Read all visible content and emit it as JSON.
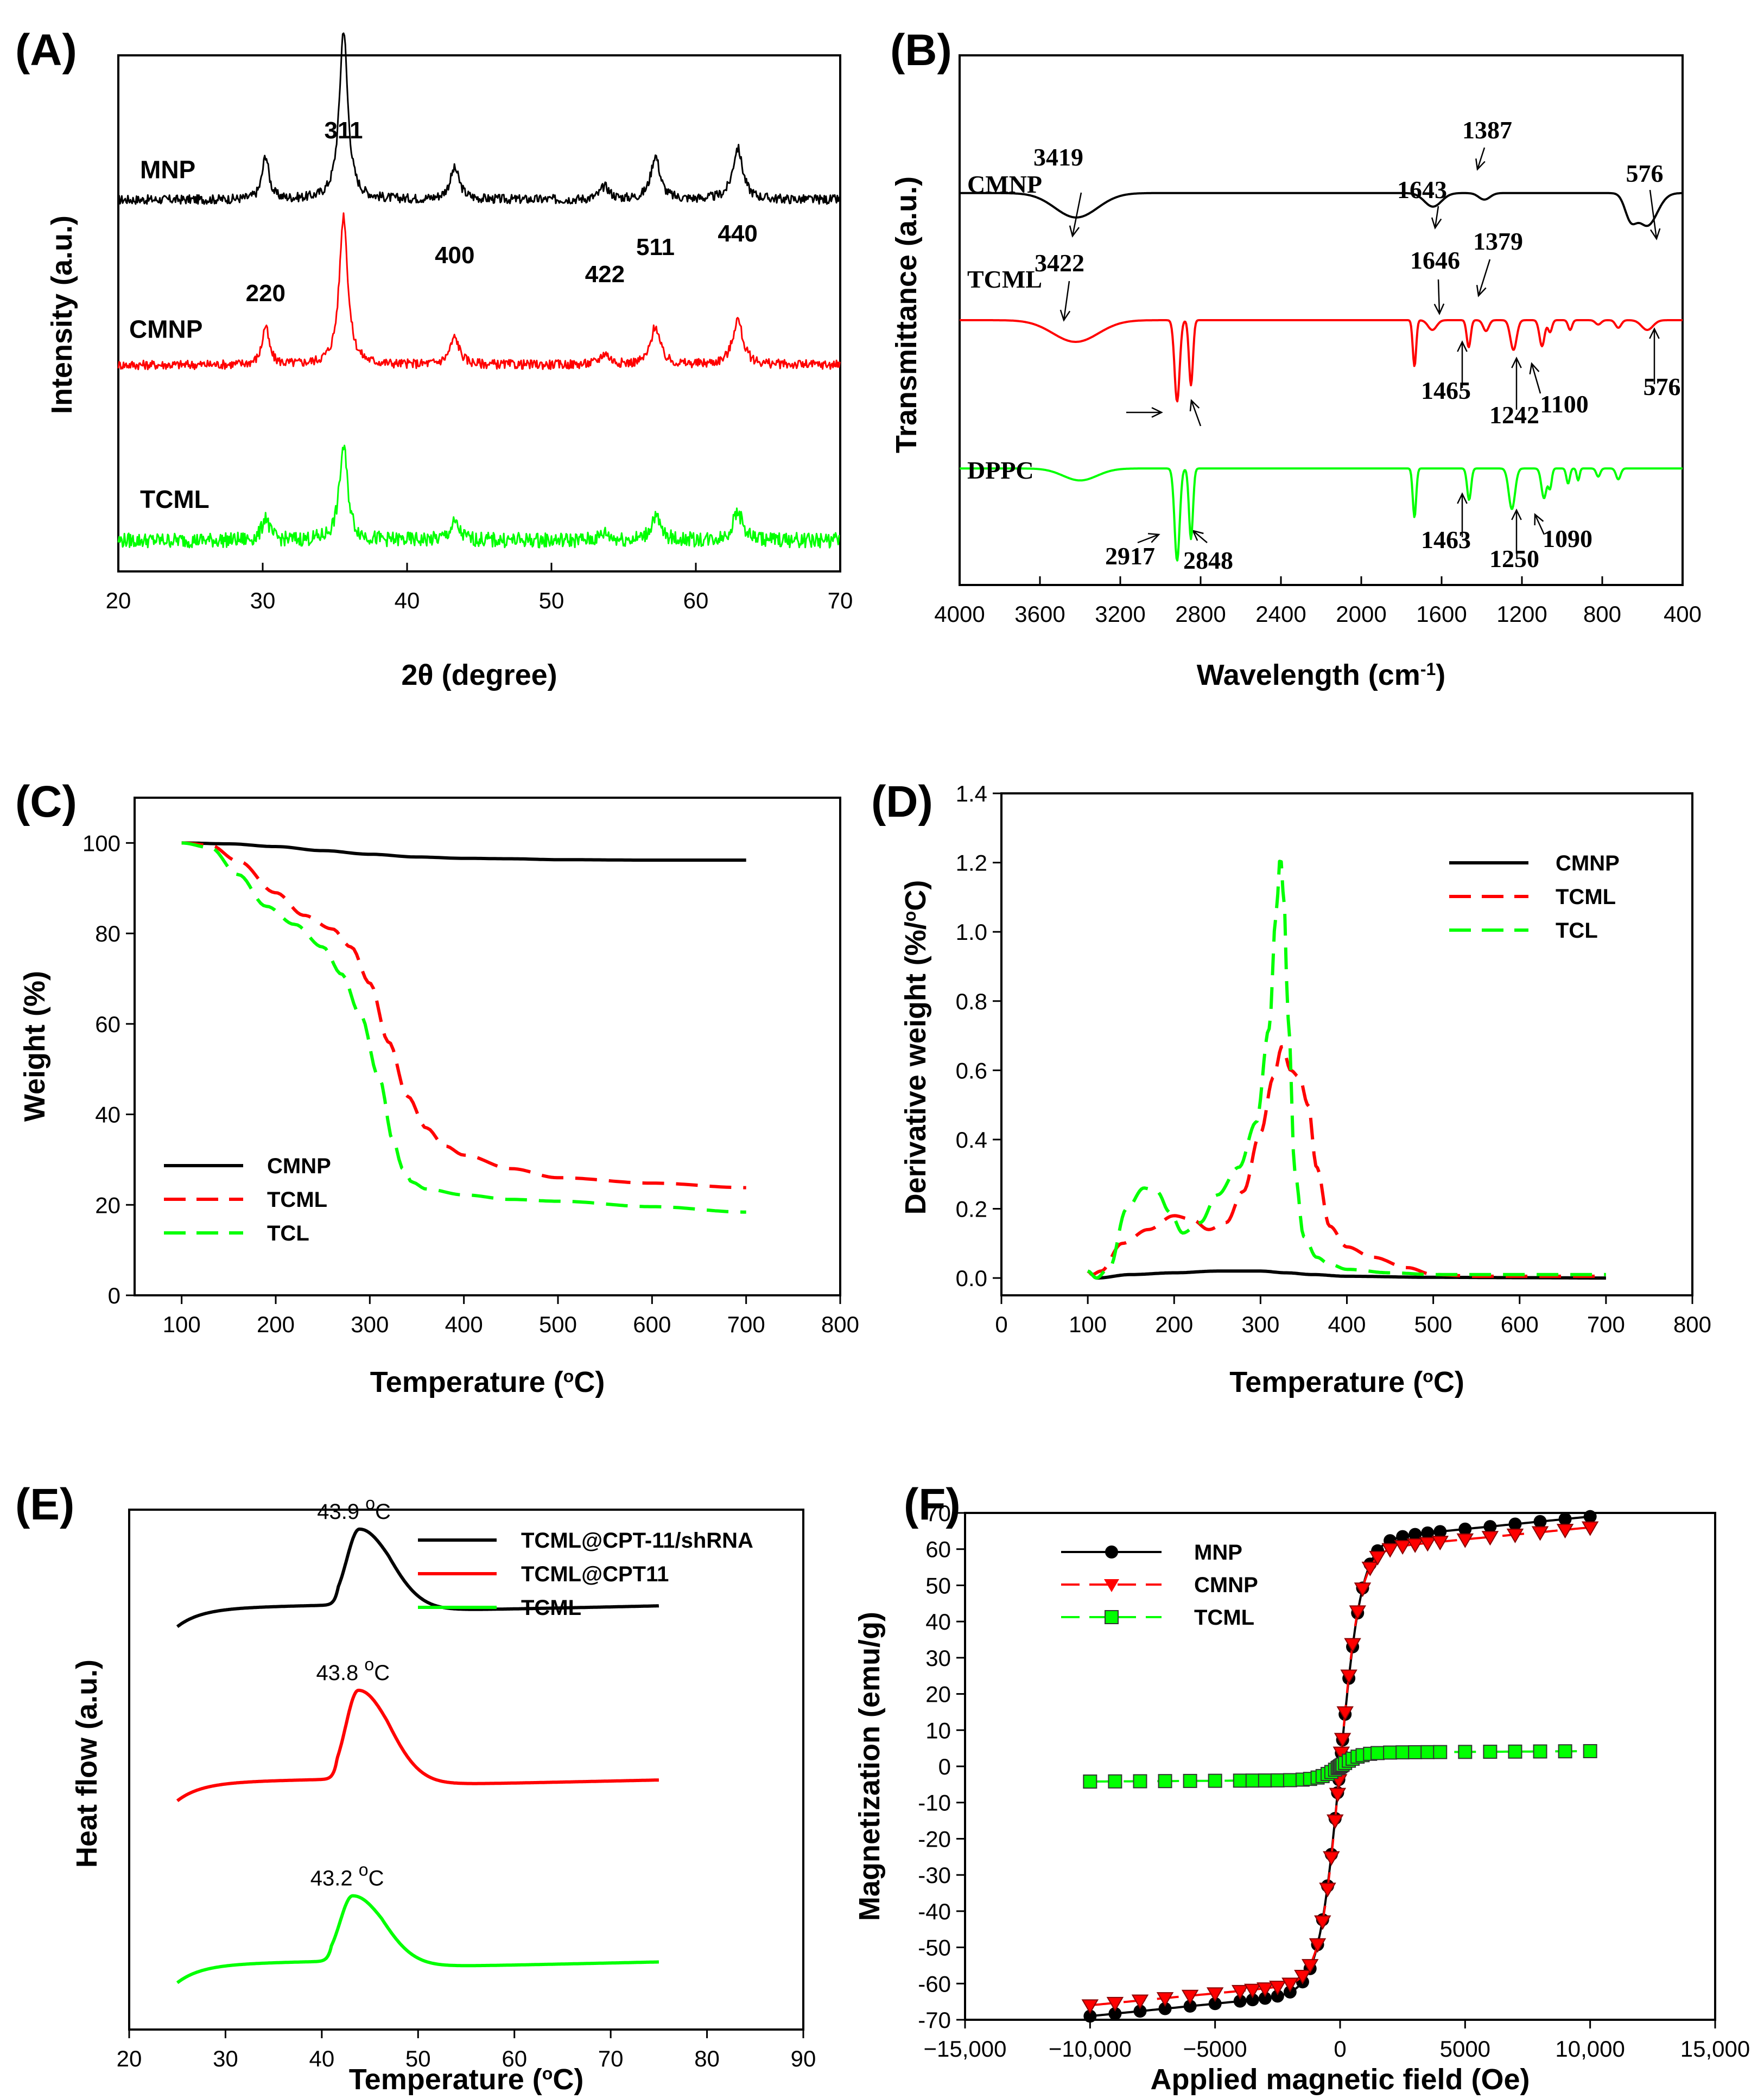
{
  "chart_data": [
    {
      "panel": "(A)",
      "type": "line",
      "xlabel": "2θ (degree)",
      "ylabel": "Intensity (a.u.)",
      "xlim": [
        20,
        70
      ],
      "xticks": [
        20,
        30,
        40,
        50,
        60,
        70
      ],
      "peaks": [
        {
          "label": "220",
          "x": 30.2
        },
        {
          "label": "311",
          "x": 35.6
        },
        {
          "label": "400",
          "x": 43.3
        },
        {
          "label": "422",
          "x": 53.7
        },
        {
          "label": "511",
          "x": 57.2
        },
        {
          "label": "440",
          "x": 62.9
        }
      ],
      "series": [
        {
          "name": "MNP",
          "color": "#000000",
          "baseline": 0.72,
          "scale": 1.0
        },
        {
          "name": "CMNP",
          "color": "#ff0000",
          "baseline": 0.4,
          "scale": 0.88
        },
        {
          "name": "TCML",
          "color": "#00ff00",
          "baseline": 0.06,
          "scale": 0.55
        }
      ]
    },
    {
      "panel": "(B)",
      "type": "line",
      "xlabel": "Wavelength (cm",
      "xlabel_sup": "-1",
      "xlabel_end": ")",
      "ylabel": "Transmittance (a.u.)",
      "xlim": [
        4000,
        400
      ],
      "xticks": [
        4000,
        3600,
        3200,
        2800,
        2400,
        2000,
        1600,
        1200,
        800,
        400
      ],
      "series": [
        {
          "name": "CMNP",
          "color": "#000000",
          "bands": [
            3419,
            1643,
            1387,
            576
          ]
        },
        {
          "name": "TCML",
          "color": "#ff0000",
          "bands": [
            3422,
            2917,
            2848,
            1646,
            1465,
            1379,
            1242,
            1100,
            576
          ]
        },
        {
          "name": "DPPC",
          "color": "#00ff00",
          "bands": [
            2917,
            2848,
            1463,
            1250,
            1090
          ]
        }
      ],
      "annotations": [
        "3419",
        "1643",
        "1387",
        "576",
        "3422",
        "1646",
        "1379",
        "1465",
        "1242",
        "1100",
        "576",
        "2917",
        "2848",
        "1463",
        "1250",
        "1090"
      ]
    },
    {
      "panel": "(C)",
      "type": "line",
      "xlabel": "Temperature (",
      "xlabel_sup": "o",
      "xlabel_end": "C)",
      "ylabel": "Weight (%)",
      "xlim": [
        50,
        800
      ],
      "ylim": [
        0,
        110
      ],
      "xticks": [
        100,
        200,
        300,
        400,
        500,
        600,
        700,
        800
      ],
      "yticks": [
        0,
        20,
        40,
        60,
        80,
        100
      ],
      "series": [
        {
          "name": "CMNP",
          "color": "#000000",
          "dash": "solid",
          "x": [
            100,
            150,
            200,
            250,
            300,
            350,
            400,
            450,
            500,
            600,
            700
          ],
          "y": [
            100,
            99.8,
            99.2,
            98.3,
            97.5,
            96.9,
            96.6,
            96.5,
            96.3,
            96.2,
            96.2
          ]
        },
        {
          "name": "TCML",
          "color": "#ff0000",
          "dash": "dashed",
          "x": [
            100,
            130,
            160,
            200,
            230,
            260,
            280,
            300,
            320,
            340,
            360,
            380,
            400,
            450,
            500,
            600,
            700
          ],
          "y": [
            100,
            99.5,
            96,
            89,
            84,
            81,
            77,
            69,
            56,
            44,
            37,
            33,
            31,
            28,
            26,
            24.8,
            23.8
          ]
        },
        {
          "name": "TCL",
          "color": "#00ff00",
          "dash": "dashed",
          "x": [
            100,
            130,
            160,
            190,
            220,
            250,
            270,
            290,
            310,
            325,
            335,
            345,
            360,
            400,
            450,
            500,
            600,
            700
          ],
          "y": [
            100,
            99,
            93,
            86,
            82,
            77,
            71,
            62,
            48,
            34,
            28,
            25,
            23.5,
            22.2,
            21.2,
            20.8,
            19.6,
            18.4
          ]
        }
      ]
    },
    {
      "panel": "(D)",
      "type": "line",
      "xlabel": "Temperature (",
      "xlabel_sup": "o",
      "xlabel_end": "C)",
      "ylabel": "Derivative weight (%/",
      "ylabel_sup": "o",
      "ylabel_end": "C)",
      "xlim": [
        0,
        800
      ],
      "ylim": [
        -0.05,
        1.4
      ],
      "xticks": [
        0,
        100,
        200,
        300,
        400,
        500,
        600,
        700,
        800
      ],
      "yticks": [
        0.0,
        0.2,
        0.4,
        0.6,
        0.8,
        1.0,
        1.2,
        1.4
      ],
      "series": [
        {
          "name": "CMNP",
          "color": "#000000",
          "dash": "solid",
          "x": [
            100,
            110,
            150,
            200,
            250,
            300,
            330,
            360,
            400,
            500,
            600,
            700
          ],
          "y": [
            0.02,
            0.0,
            0.01,
            0.015,
            0.02,
            0.02,
            0.015,
            0.01,
            0.005,
            0.002,
            0.001,
            0.0
          ]
        },
        {
          "name": "TCML",
          "color": "#ff0000",
          "dash": "dashed",
          "x": [
            100,
            105,
            115,
            140,
            170,
            200,
            220,
            240,
            260,
            280,
            300,
            315,
            325,
            335,
            345,
            355,
            365,
            380,
            400,
            430,
            470,
            500,
            550,
            700
          ],
          "y": [
            0.02,
            0.01,
            0.02,
            0.1,
            0.14,
            0.18,
            0.17,
            0.14,
            0.16,
            0.25,
            0.42,
            0.58,
            0.67,
            0.6,
            0.58,
            0.5,
            0.32,
            0.15,
            0.09,
            0.06,
            0.03,
            0.01,
            0.005,
            0.005
          ]
        },
        {
          "name": "TCL",
          "color": "#00ff00",
          "dash": "dashed",
          "x": [
            100,
            110,
            125,
            145,
            165,
            180,
            195,
            210,
            230,
            250,
            275,
            295,
            310,
            318,
            323,
            327,
            332,
            340,
            350,
            365,
            380,
            400,
            450,
            500,
            600,
            700
          ],
          "y": [
            0.02,
            0.0,
            0.03,
            0.2,
            0.26,
            0.25,
            0.19,
            0.13,
            0.16,
            0.24,
            0.32,
            0.45,
            0.72,
            1.05,
            1.22,
            1.1,
            0.75,
            0.3,
            0.12,
            0.06,
            0.04,
            0.025,
            0.015,
            0.01,
            0.01,
            0.01
          ]
        }
      ]
    },
    {
      "panel": "(E)",
      "type": "line",
      "xlabel": "Temperature (",
      "xlabel_sup": "o",
      "xlabel_end": "C)",
      "ylabel": "Heat flow (a.u.)",
      "xlim": [
        20,
        90
      ],
      "xticks": [
        20,
        30,
        40,
        50,
        60,
        70,
        80,
        90
      ],
      "series": [
        {
          "name": "TCML@CPT-11/shRNA",
          "color": "#000000",
          "peak_x": 43.9,
          "peak_label": "43.9",
          "baseline": 0.775,
          "height": 0.145
        },
        {
          "name": "TCML@CPT11",
          "color": "#ff0000",
          "peak_x": 43.8,
          "peak_label": "43.8",
          "baseline": 0.44,
          "height": 0.17
        },
        {
          "name": "TCML",
          "color": "#00ff00",
          "peak_x": 43.2,
          "peak_label": "43.2",
          "baseline": 0.09,
          "height": 0.125
        }
      ],
      "peak_unit": "C"
    },
    {
      "panel": "(F)",
      "type": "scatter",
      "xlabel": "Applied magnetic field (Oe)",
      "ylabel": "Magnetization (emu/g)",
      "xlim": [
        -15000,
        15000
      ],
      "ylim": [
        -70,
        70
      ],
      "xticks": [
        -15000,
        -10000,
        -5000,
        0,
        5000,
        10000,
        15000
      ],
      "xtick_labels": [
        "−15,000",
        "−10,000",
        "−5000",
        "0",
        "5000",
        "10,000",
        "15,000"
      ],
      "yticks": [
        -70,
        -60,
        -50,
        -40,
        -30,
        -20,
        -10,
        0,
        10,
        20,
        30,
        40,
        50,
        60,
        70
      ],
      "series": [
        {
          "name": "MNP",
          "color": "#000000",
          "marker": "circle",
          "dash": "solid",
          "Ms": 69,
          "Hk": 850
        },
        {
          "name": "CMNP",
          "color": "#ff0000",
          "marker": "triangle-down",
          "dash": "dashed",
          "Ms": 66,
          "Hk": 780
        },
        {
          "name": "TCML",
          "color": "#00ff00",
          "marker": "square",
          "dash": "dashed",
          "Ms": 4.2,
          "Hk": 800
        }
      ]
    }
  ]
}
